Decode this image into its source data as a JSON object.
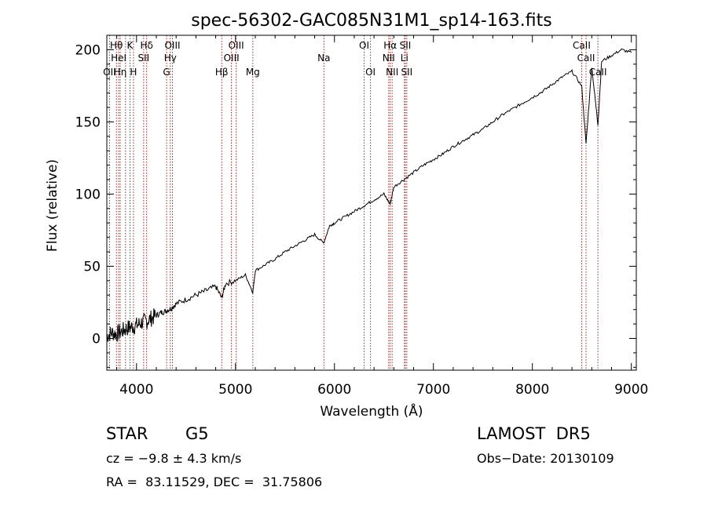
{
  "chart_data": {
    "type": "line",
    "title": "spec-56302-GAC085N31M1_sp14-163.fits",
    "xlabel": "Wavelength (Å)",
    "ylabel": "Flux (relative)",
    "xlim": [
      3700,
      9050
    ],
    "ylim": [
      -22,
      210
    ],
    "xticks": [
      4000,
      5000,
      6000,
      7000,
      8000,
      9000
    ],
    "yticks": [
      0,
      50,
      100,
      150,
      200
    ],
    "grid": false,
    "legend": "none",
    "line_color": "#000000",
    "marker_color": "#b22222",
    "series": [
      {
        "x": [
          3700,
          3750,
          3800,
          3850,
          3900,
          3950,
          4000,
          4050,
          4100,
          4150,
          4200,
          4250,
          4300,
          4350,
          4400,
          4500,
          4600,
          4700,
          4800,
          4861,
          4900,
          5000,
          5100,
          5175,
          5200,
          5300,
          5400,
          5500,
          5600,
          5700,
          5800,
          5890,
          5950,
          6000,
          6100,
          6200,
          6300,
          6400,
          6500,
          6563,
          6600,
          6700,
          6800,
          6900,
          7000,
          7100,
          7200,
          7300,
          7400,
          7500,
          7600,
          7700,
          7800,
          7900,
          8000,
          8100,
          8200,
          8300,
          8400,
          8498,
          8542,
          8600,
          8662,
          8700,
          8800,
          8900,
          9000
        ],
        "y": [
          2,
          4,
          3,
          5,
          7,
          8,
          9,
          11,
          12,
          14,
          16,
          18,
          19,
          21,
          24,
          27,
          30,
          33,
          36,
          28,
          38,
          40,
          44,
          32,
          47,
          51,
          55,
          60,
          64,
          68,
          72,
          66,
          78,
          80,
          84,
          88,
          92,
          96,
          100,
          93,
          105,
          110,
          115,
          120,
          124,
          128,
          133,
          137,
          141,
          145,
          150,
          155,
          159,
          163,
          167,
          171,
          176,
          181,
          185,
          175,
          135,
          188,
          148,
          192,
          196,
          200,
          198
        ]
      }
    ],
    "lines": [
      {
        "wavelength": 3727,
        "label": "OII",
        "row": 3
      },
      {
        "wavelength": 3797,
        "label": "Hθ",
        "row": 1
      },
      {
        "wavelength": 3820,
        "label": "HeI",
        "row": 2
      },
      {
        "wavelength": 3835,
        "label": "Hη",
        "row": 3
      },
      {
        "wavelength": 3889,
        "label": "",
        "row": 0
      },
      {
        "wavelength": 3934,
        "label": "K",
        "row": 1
      },
      {
        "wavelength": 3969,
        "label": "H",
        "row": 3
      },
      {
        "wavelength": 4072,
        "label": "SII",
        "row": 2
      },
      {
        "wavelength": 4102,
        "label": "Hδ",
        "row": 1
      },
      {
        "wavelength": 4304,
        "label": "G",
        "row": 3
      },
      {
        "wavelength": 4341,
        "label": "Hγ",
        "row": 2
      },
      {
        "wavelength": 4363,
        "label": "OIII",
        "row": 1
      },
      {
        "wavelength": 4861,
        "label": "Hβ",
        "row": 3
      },
      {
        "wavelength": 4959,
        "label": "OIII",
        "row": 2
      },
      {
        "wavelength": 5007,
        "label": "OIII",
        "row": 1
      },
      {
        "wavelength": 5175,
        "label": "Mg",
        "row": 3
      },
      {
        "wavelength": 5893,
        "label": "Na",
        "row": 2
      },
      {
        "wavelength": 6300,
        "label": "OI",
        "row": 1
      },
      {
        "wavelength": 6364,
        "label": "OI",
        "row": 3
      },
      {
        "wavelength": 6548,
        "label": "NII",
        "row": 2
      },
      {
        "wavelength": 6563,
        "label": "Hα",
        "row": 1
      },
      {
        "wavelength": 6583,
        "label": "NII",
        "row": 3
      },
      {
        "wavelength": 6707,
        "label": "Li",
        "row": 2
      },
      {
        "wavelength": 6716,
        "label": "SII",
        "row": 1
      },
      {
        "wavelength": 6731,
        "label": "SII",
        "row": 3
      },
      {
        "wavelength": 8498,
        "label": "CaII",
        "row": 1
      },
      {
        "wavelength": 8542,
        "label": "CaII",
        "row": 2
      },
      {
        "wavelength": 8662,
        "label": "CaII",
        "row": 3
      }
    ]
  },
  "info": {
    "object_class": "STAR",
    "subclass": "G5",
    "survey": "LAMOST  DR5",
    "redshift": "cz = −9.8 ± 4.3 km/s",
    "obs_date": "Obs−Date: 20130109",
    "coords": "RA =  83.11529, DEC =  31.75806"
  }
}
